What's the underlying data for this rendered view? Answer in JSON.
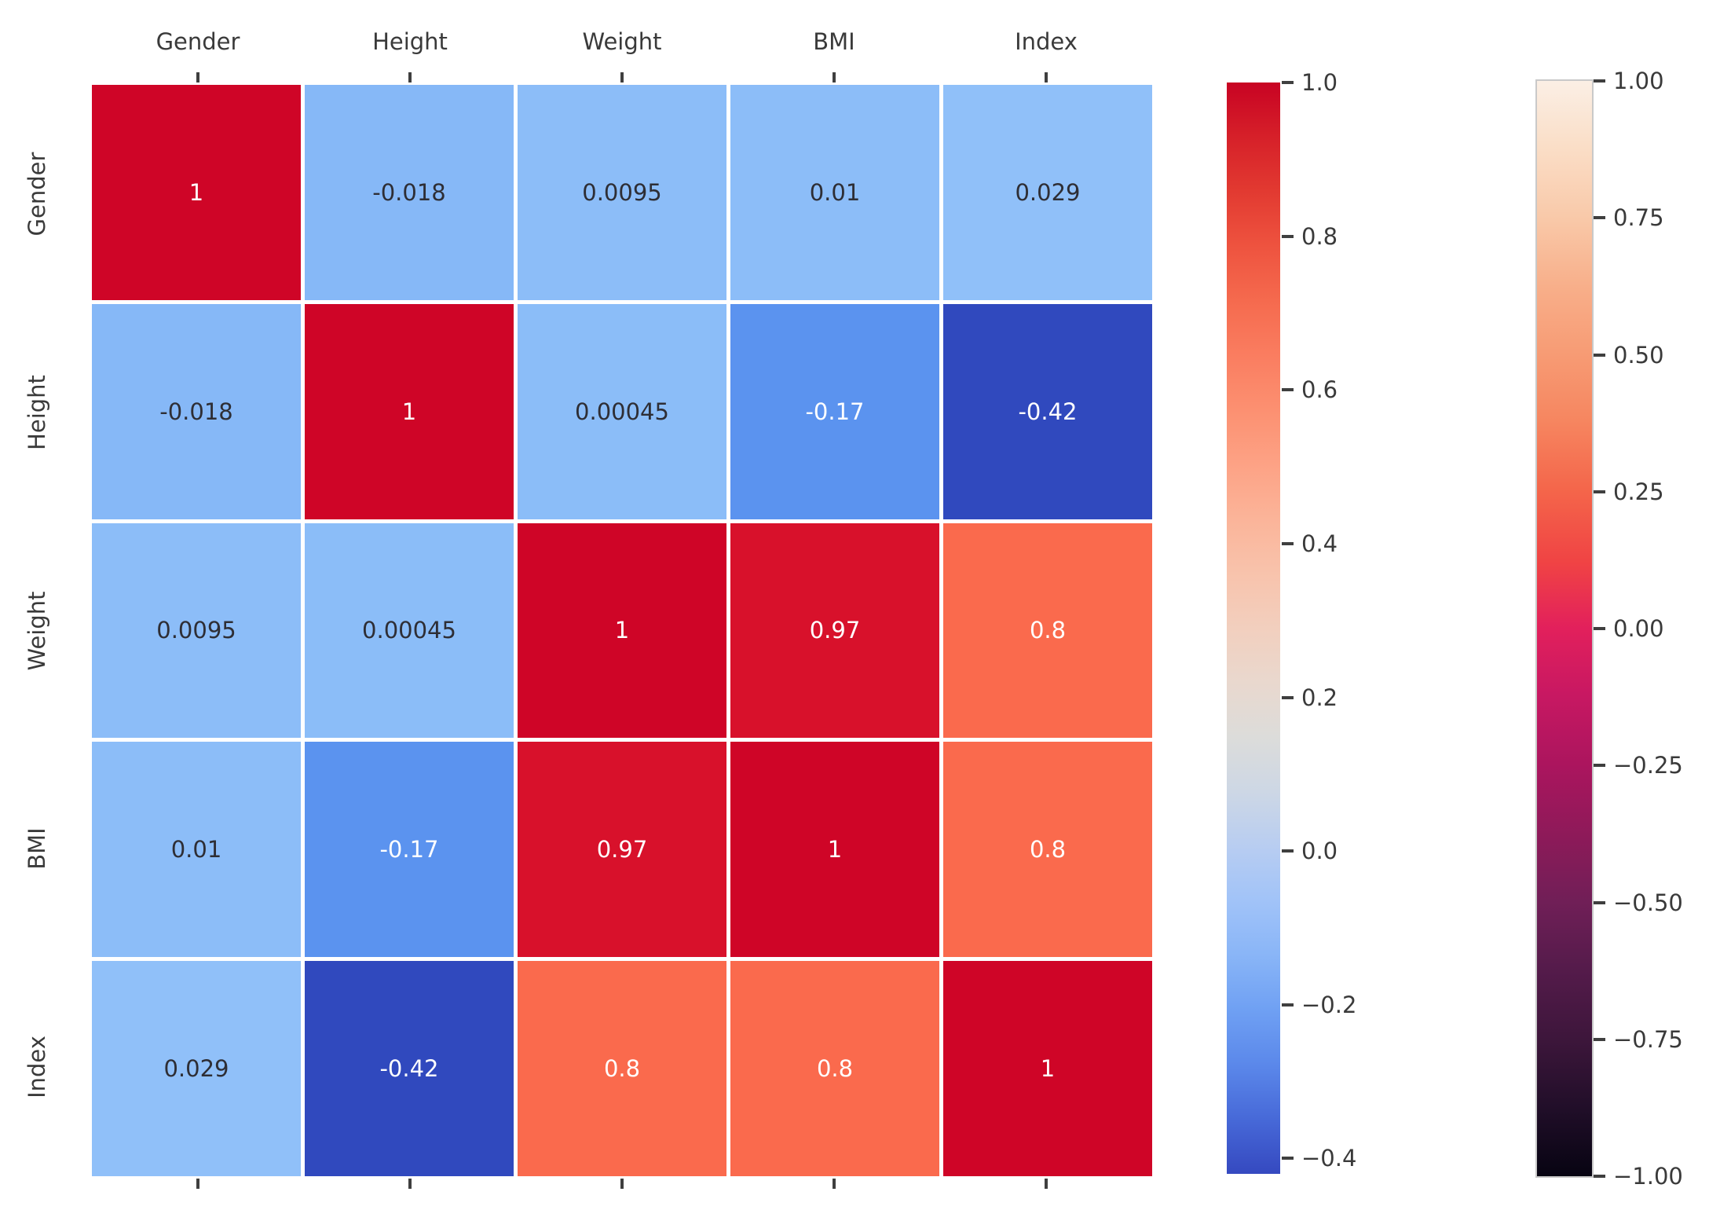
{
  "figure": {
    "background": "#ffffff",
    "label_color": "#3a3a3a",
    "tick_color": "#3f3f3f"
  },
  "chart_data": {
    "type": "heatmap",
    "title": "",
    "xlabel": "",
    "ylabel": "",
    "grid": false,
    "categories": [
      "Gender",
      "Height",
      "Weight",
      "BMI",
      "Index"
    ],
    "matrix_values": [
      [
        1,
        -0.018,
        0.0095,
        0.01,
        0.029
      ],
      [
        -0.018,
        1,
        0.00045,
        -0.17,
        -0.42
      ],
      [
        0.0095,
        0.00045,
        1,
        0.97,
        0.8
      ],
      [
        0.01,
        -0.17,
        0.97,
        1,
        0.8
      ],
      [
        0.029,
        -0.42,
        0.8,
        0.8,
        1
      ]
    ],
    "matrix_labels": [
      [
        "1",
        "-0.018",
        "0.0095",
        "0.01",
        "0.029"
      ],
      [
        "-0.018",
        "1",
        "0.00045",
        "-0.17",
        "-0.42"
      ],
      [
        "0.0095",
        "0.00045",
        "1",
        "0.97",
        "0.8"
      ],
      [
        "0.01",
        "-0.17",
        "0.97",
        "1",
        "0.8"
      ],
      [
        "0.029",
        "-0.42",
        "0.8",
        "0.8",
        "1"
      ]
    ],
    "cell_colors": [
      [
        "#cf0527",
        "#86b8f7",
        "#8cbdf8",
        "#8cbdf8",
        "#90c0f9"
      ],
      [
        "#86b8f7",
        "#cf0527",
        "#8bbdf8",
        "#5b93ef",
        "#3049be"
      ],
      [
        "#8cbdf8",
        "#8bbdf8",
        "#cf0527",
        "#d8112b",
        "#fa6a4d"
      ],
      [
        "#8cbdf8",
        "#5b93ef",
        "#d8112b",
        "#cf0527",
        "#fa6a4d"
      ],
      [
        "#90c0f9",
        "#3049be",
        "#fa6a4d",
        "#fa6a4d",
        "#cf0527"
      ]
    ],
    "cell_text_tone": [
      [
        "light",
        "dark",
        "dark",
        "dark",
        "dark"
      ],
      [
        "dark",
        "light",
        "dark",
        "light",
        "light"
      ],
      [
        "dark",
        "dark",
        "light",
        "light",
        "light"
      ],
      [
        "dark",
        "light",
        "light",
        "light",
        "light"
      ],
      [
        "dark",
        "light",
        "light",
        "light",
        "light"
      ]
    ],
    "annot_dark_color": "#2e2e35",
    "annot_light_color": "#ffffff",
    "colorbar_main": {
      "range_min": -0.42,
      "range_max": 1.0,
      "ticks": [
        {
          "label": "1.0",
          "value": 1.0
        },
        {
          "label": "0.8",
          "value": 0.8
        },
        {
          "label": "0.6",
          "value": 0.6
        },
        {
          "label": "0.4",
          "value": 0.4
        },
        {
          "label": "0.2",
          "value": 0.2
        },
        {
          "label": "0.0",
          "value": 0.0
        },
        {
          "label": "−0.2",
          "value": -0.2
        },
        {
          "label": "−0.4",
          "value": -0.4
        }
      ],
      "gradient": [
        {
          "pos": 0,
          "color": "#c80323"
        },
        {
          "pos": 5,
          "color": "#d62029"
        },
        {
          "pos": 10,
          "color": "#e23a31"
        },
        {
          "pos": 15,
          "color": "#ee533f"
        },
        {
          "pos": 20,
          "color": "#f56a4e"
        },
        {
          "pos": 25,
          "color": "#fa7d60"
        },
        {
          "pos": 30,
          "color": "#fc9071"
        },
        {
          "pos": 35,
          "color": "#fda285"
        },
        {
          "pos": 40,
          "color": "#fbb499"
        },
        {
          "pos": 45,
          "color": "#f8c3ac"
        },
        {
          "pos": 50,
          "color": "#f2cfbe"
        },
        {
          "pos": 55,
          "color": "#e9d8ce"
        },
        {
          "pos": 60,
          "color": "#dcdcda"
        },
        {
          "pos": 65,
          "color": "#cdd7e5"
        },
        {
          "pos": 70,
          "color": "#b8cdf1"
        },
        {
          "pos": 75,
          "color": "#a1c3f8"
        },
        {
          "pos": 80,
          "color": "#89b5f7"
        },
        {
          "pos": 85,
          "color": "#6fa0f3"
        },
        {
          "pos": 90,
          "color": "#5b88ea"
        },
        {
          "pos": 95,
          "color": "#4769d8"
        },
        {
          "pos": 100,
          "color": "#3549c0"
        }
      ],
      "border_color": ""
    },
    "colorbar_secondary": {
      "range_min": -1.0,
      "range_max": 1.0,
      "ticks": [
        {
          "label": "1.00",
          "value": 1.0
        },
        {
          "label": "0.75",
          "value": 0.75
        },
        {
          "label": "0.50",
          "value": 0.5
        },
        {
          "label": "0.25",
          "value": 0.25
        },
        {
          "label": "0.00",
          "value": 0.0
        },
        {
          "label": "−0.25",
          "value": -0.25
        },
        {
          "label": "−0.50",
          "value": -0.5
        },
        {
          "label": "−0.75",
          "value": -0.75
        },
        {
          "label": "−1.00",
          "value": -1.0
        }
      ],
      "gradient": [
        {
          "pos": 0,
          "color": "#fbefe5"
        },
        {
          "pos": 6,
          "color": "#fadec7"
        },
        {
          "pos": 12.5,
          "color": "#f9c9a9"
        },
        {
          "pos": 19,
          "color": "#f8ae89"
        },
        {
          "pos": 25,
          "color": "#f79b74"
        },
        {
          "pos": 31,
          "color": "#f68660"
        },
        {
          "pos": 37.5,
          "color": "#f4654a"
        },
        {
          "pos": 44,
          "color": "#f04344"
        },
        {
          "pos": 50,
          "color": "#e2205c"
        },
        {
          "pos": 56,
          "color": "#c81862"
        },
        {
          "pos": 62.5,
          "color": "#ab155e"
        },
        {
          "pos": 69,
          "color": "#8d1a59"
        },
        {
          "pos": 75,
          "color": "#701f57"
        },
        {
          "pos": 81,
          "color": "#551b4b"
        },
        {
          "pos": 87.5,
          "color": "#3d163b"
        },
        {
          "pos": 94,
          "color": "#200e28"
        },
        {
          "pos": 100,
          "color": "#070412"
        }
      ],
      "border_color": "#c9c9c9"
    }
  }
}
